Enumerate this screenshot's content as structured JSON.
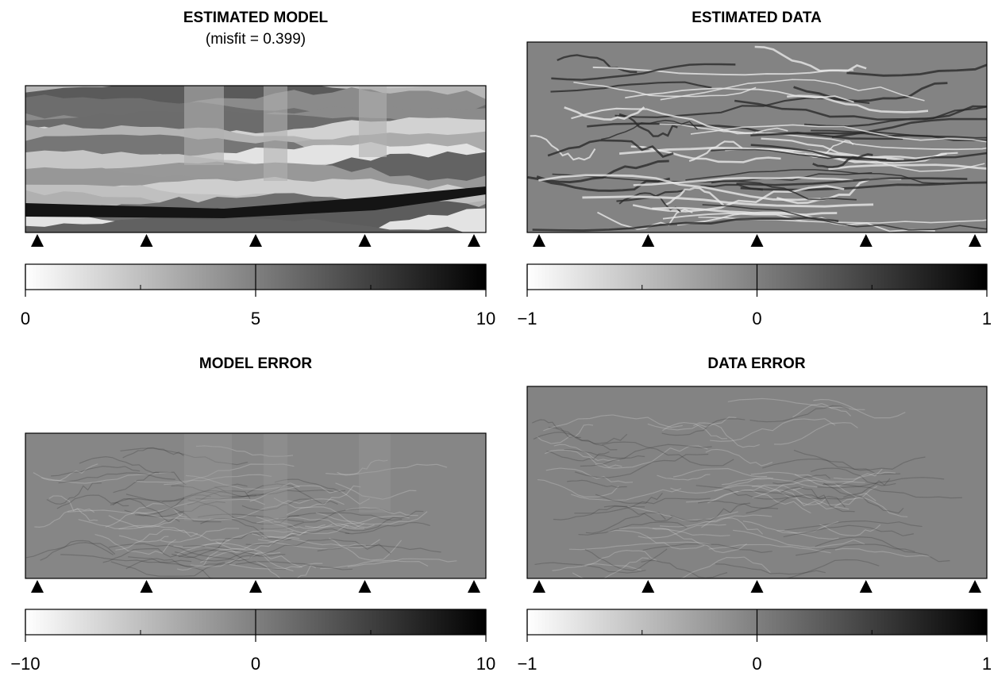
{
  "panels": [
    {
      "title": "ESTIMATED MODEL",
      "subtitle": "(misfit = 0.399)",
      "colorbar": {
        "lim": [
          0,
          10
        ],
        "ticks": [
          0,
          5,
          10
        ],
        "minor_ticks": [
          2.5,
          7.5
        ]
      }
    },
    {
      "title": "ESTIMATED DATA",
      "colorbar": {
        "lim": [
          -1,
          1
        ],
        "ticks": [
          {
            "value": -1,
            "label": "−1"
          },
          0,
          1
        ],
        "minor_ticks": [
          -0.5,
          0.5
        ]
      }
    },
    {
      "title": "MODEL ERROR",
      "colorbar": {
        "lim": [
          -10,
          10
        ],
        "ticks": [
          {
            "value": -10,
            "label": "−10"
          },
          0,
          10
        ],
        "minor_ticks": [
          -5,
          5
        ]
      }
    },
    {
      "title": "DATA ERROR",
      "colorbar": {
        "lim": [
          -1,
          1
        ],
        "ticks": [
          {
            "value": -1,
            "label": "−1"
          },
          0,
          1
        ],
        "minor_ticks": [
          -0.5,
          0.5
        ]
      }
    }
  ]
}
